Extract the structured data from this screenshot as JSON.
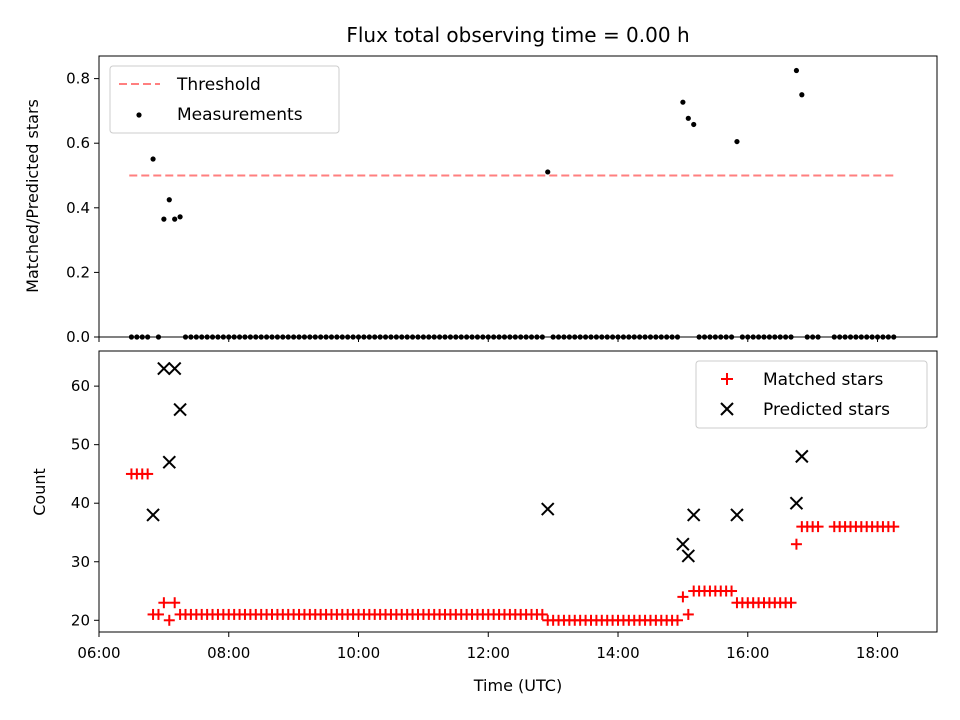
{
  "chart_data": [
    {
      "type": "scatter",
      "title": "Flux total observing time = 0.00 h",
      "xlabel": "",
      "ylabel": "Matched/Predicted stars",
      "ylim": [
        0,
        0.87
      ],
      "yticks": [
        0.0,
        0.2,
        0.4,
        0.6,
        0.8
      ],
      "legend": "top-left",
      "series": [
        {
          "name": "Threshold",
          "style": "dashed-line",
          "color": "#ff7f7f",
          "x": [
            "06:28",
            "18:16"
          ],
          "y": [
            0.5,
            0.5
          ]
        },
        {
          "name": "Measurements",
          "style": "dot",
          "color": "#000000",
          "points_ratio": [
            [
              "06:50",
              0.551
            ],
            [
              "07:00",
              0.365
            ],
            [
              "07:05",
              0.425
            ],
            [
              "07:10",
              0.365
            ],
            [
              "07:15",
              0.372
            ],
            [
              "12:55",
              0.511
            ],
            [
              "15:00",
              0.727
            ],
            [
              "15:05",
              0.677
            ],
            [
              "15:10",
              0.658
            ],
            [
              "15:50",
              0.605
            ],
            [
              "16:45",
              0.825
            ],
            [
              "16:50",
              0.75
            ]
          ],
          "zero_runs": [
            [
              "06:30",
              "06:45",
              5
            ],
            [
              "06:55",
              "06:55",
              5
            ],
            [
              "07:20",
              "12:50",
              5
            ],
            [
              "13:00",
              "14:55",
              5
            ],
            [
              "15:15",
              "15:45",
              5
            ],
            [
              "15:55",
              "16:40",
              5
            ],
            [
              "16:55",
              "17:05",
              5
            ],
            [
              "17:20",
              "18:15",
              5
            ]
          ]
        }
      ]
    },
    {
      "type": "scatter",
      "title": "",
      "xlabel": "Time (UTC)",
      "ylabel": "Count",
      "ylim": [
        18,
        66
      ],
      "yticks": [
        20,
        30,
        40,
        50,
        60
      ],
      "xlim": [
        "06:00",
        "18:55"
      ],
      "xticks": [
        "06:00",
        "08:00",
        "10:00",
        "12:00",
        "14:00",
        "16:00",
        "18:00"
      ],
      "legend": "top-right",
      "series": [
        {
          "name": "Matched stars",
          "style": "plus",
          "color": "#ff0000",
          "runs": [
            [
              "06:30",
              "06:45",
              5,
              45
            ],
            [
              "06:50",
              "06:55",
              5,
              21
            ],
            [
              "07:00",
              "07:00",
              5,
              23
            ],
            [
              "07:05",
              "07:05",
              5,
              20
            ],
            [
              "07:10",
              "07:10",
              5,
              23
            ],
            [
              "07:15",
              "12:50",
              5,
              21
            ],
            [
              "12:55",
              "14:55",
              5,
              20
            ],
            [
              "15:00",
              "15:00",
              5,
              24
            ],
            [
              "15:05",
              "15:05",
              5,
              21
            ],
            [
              "15:10",
              "15:45",
              5,
              25
            ],
            [
              "15:50",
              "16:40",
              5,
              23
            ],
            [
              "16:45",
              "16:45",
              5,
              33
            ],
            [
              "16:50",
              "17:05",
              5,
              36
            ],
            [
              "17:20",
              "18:15",
              5,
              36
            ]
          ]
        },
        {
          "name": "Predicted stars",
          "style": "x",
          "color": "#000000",
          "points": [
            [
              "06:50",
              38
            ],
            [
              "07:00",
              63
            ],
            [
              "07:05",
              47
            ],
            [
              "07:10",
              63
            ],
            [
              "07:15",
              56
            ],
            [
              "12:55",
              39
            ],
            [
              "15:00",
              33
            ],
            [
              "15:05",
              31
            ],
            [
              "15:10",
              38
            ],
            [
              "15:50",
              38
            ],
            [
              "16:45",
              40
            ],
            [
              "16:50",
              48
            ]
          ]
        }
      ]
    }
  ]
}
